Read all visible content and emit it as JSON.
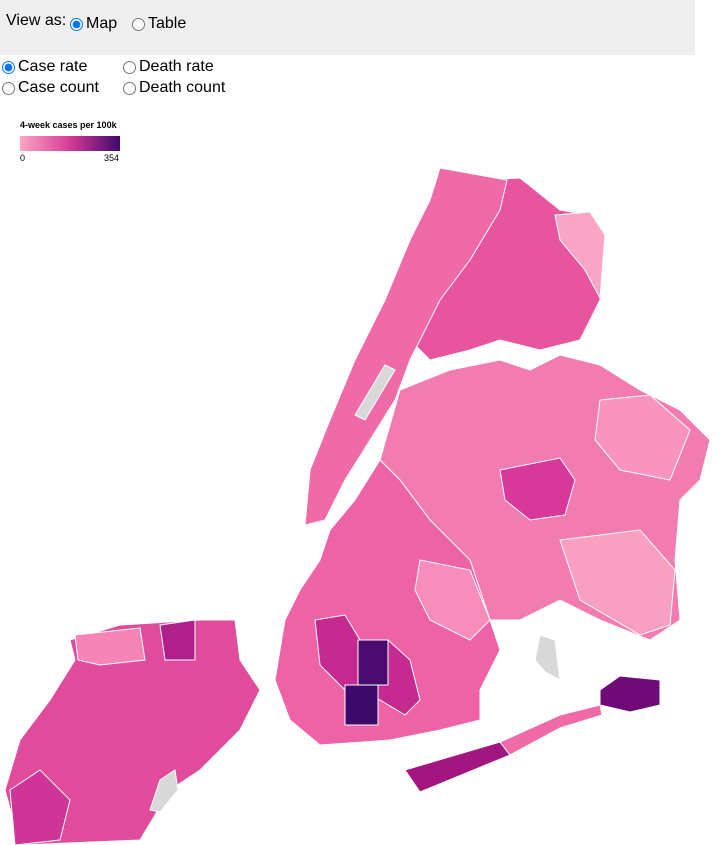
{
  "view_toggle": {
    "label": "View as:",
    "options": [
      "Map",
      "Table"
    ],
    "selected": 0
  },
  "metrics": {
    "options": [
      "Case rate",
      "Death rate",
      "Case count",
      "Death count"
    ],
    "selected": 0
  },
  "legend": {
    "title": "4-week cases per 100k",
    "min": 0,
    "max": 354,
    "colors": [
      "#fba5c4",
      "#d63a96",
      "#3d0a6b"
    ]
  }
}
